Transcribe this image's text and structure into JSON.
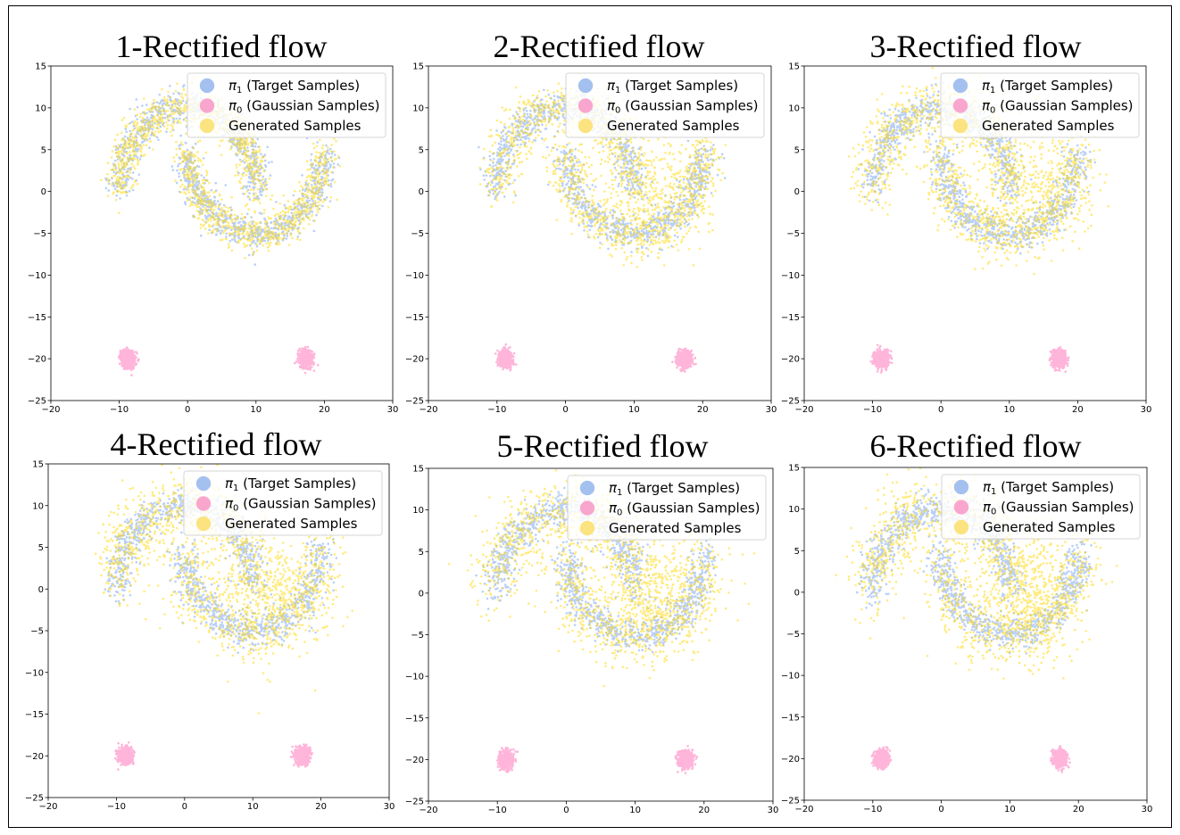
{
  "colors": {
    "target": "#6495ed",
    "gaussian": "#ff69b4",
    "generated": "#ffd700",
    "legend_target": "#a4c0ef",
    "legend_gaussian": "#f9a6cf",
    "legend_generated": "#fbe37f"
  },
  "legend": {
    "target_symbol": "π",
    "target_sub": "1",
    "target_text": " (Target Samples)",
    "gaussian_symbol": "π",
    "gaussian_sub": "0",
    "gaussian_text": " (Gaussian Samples)",
    "generated_text": "Generated Samples"
  },
  "chart_data": [
    {
      "type": "scatter",
      "title": "1-Rectified flow",
      "xlim": [
        -20,
        30
      ],
      "ylim": [
        -25,
        15
      ],
      "xticks": [
        "−20",
        "−10",
        "0",
        "10",
        "20",
        "30"
      ],
      "yticks": [
        "15",
        "10",
        "5",
        "0",
        "−5",
        "−10",
        "−15",
        "−20",
        "−25"
      ],
      "xtick_values": [
        -20,
        -10,
        0,
        10,
        20,
        30
      ],
      "ytick_values": [
        15,
        10,
        5,
        0,
        -5,
        -10,
        -15,
        -20,
        -25
      ],
      "legend_loc": "upper right",
      "series": [
        {
          "name": "π1 (Target Samples)",
          "distribution": "two interleaving moons",
          "moon_1_center": [
            0,
            0
          ],
          "moon_2_center": [
            10,
            5
          ],
          "radius": 10
        },
        {
          "name": "π0 (Gaussian Samples)",
          "clusters": [
            {
              "center": [
                -8.7,
                -20
              ],
              "std": 0.5
            },
            {
              "center": [
                17.3,
                -20
              ],
              "std": 0.5
            }
          ]
        },
        {
          "name": "Generated Samples",
          "spread": 1.1
        }
      ]
    },
    {
      "type": "scatter",
      "title": "2-Rectified flow",
      "xlim": [
        -20,
        30
      ],
      "ylim": [
        -25,
        15
      ],
      "xticks": [
        "−20",
        "−10",
        "0",
        "10",
        "20",
        "30"
      ],
      "yticks": [
        "15",
        "10",
        "5",
        "0",
        "−5",
        "−10",
        "−15",
        "−20",
        "−25"
      ],
      "xtick_values": [
        -20,
        -10,
        0,
        10,
        20,
        30
      ],
      "ytick_values": [
        15,
        10,
        5,
        0,
        -5,
        -10,
        -15,
        -20,
        -25
      ],
      "legend_loc": "upper right",
      "series": [
        {
          "name": "π1 (Target Samples)",
          "distribution": "two interleaving moons",
          "moon_1_center": [
            0,
            0
          ],
          "moon_2_center": [
            10,
            5
          ],
          "radius": 10
        },
        {
          "name": "π0 (Gaussian Samples)",
          "clusters": [
            {
              "center": [
                -8.7,
                -20
              ],
              "std": 0.5
            },
            {
              "center": [
                17.3,
                -20
              ],
              "std": 0.5
            }
          ]
        },
        {
          "name": "Generated Samples",
          "spread": 1.6
        }
      ]
    },
    {
      "type": "scatter",
      "title": "3-Rectified flow",
      "xlim": [
        -20,
        30
      ],
      "ylim": [
        -25,
        15
      ],
      "xticks": [
        "−20",
        "−10",
        "0",
        "10",
        "20",
        "30"
      ],
      "yticks": [
        "15",
        "10",
        "5",
        "0",
        "−5",
        "−10",
        "−15",
        "−20",
        "−25"
      ],
      "xtick_values": [
        -20,
        -10,
        0,
        10,
        20,
        30
      ],
      "ytick_values": [
        15,
        10,
        5,
        0,
        -5,
        -10,
        -15,
        -20,
        -25
      ],
      "legend_loc": "upper right",
      "series": [
        {
          "name": "π1 (Target Samples)",
          "distribution": "two interleaving moons",
          "moon_1_center": [
            0,
            0
          ],
          "moon_2_center": [
            10,
            5
          ],
          "radius": 10
        },
        {
          "name": "π0 (Gaussian Samples)",
          "clusters": [
            {
              "center": [
                -8.7,
                -20
              ],
              "std": 0.5
            },
            {
              "center": [
                17.3,
                -20
              ],
              "std": 0.5
            }
          ]
        },
        {
          "name": "Generated Samples",
          "spread": 1.8
        }
      ]
    },
    {
      "type": "scatter",
      "title": "4-Rectified flow",
      "xlim": [
        -20,
        30
      ],
      "ylim": [
        -25,
        15
      ],
      "xticks": [
        "−20",
        "−10",
        "0",
        "10",
        "20",
        "30"
      ],
      "yticks": [
        "15",
        "10",
        "5",
        "0",
        "−5",
        "−10",
        "−15",
        "−20",
        "−25"
      ],
      "xtick_values": [
        -20,
        -10,
        0,
        10,
        20,
        30
      ],
      "ytick_values": [
        15,
        10,
        5,
        0,
        -5,
        -10,
        -15,
        -20,
        -25
      ],
      "legend_loc": "upper right",
      "series": [
        {
          "name": "π1 (Target Samples)",
          "distribution": "two interleaving moons",
          "moon_1_center": [
            0,
            0
          ],
          "moon_2_center": [
            10,
            5
          ],
          "radius": 10
        },
        {
          "name": "π0 (Gaussian Samples)",
          "clusters": [
            {
              "center": [
                -8.7,
                -20
              ],
              "std": 0.5
            },
            {
              "center": [
                17.3,
                -20
              ],
              "std": 0.5
            }
          ]
        },
        {
          "name": "Generated Samples",
          "spread": 2.0
        }
      ]
    },
    {
      "type": "scatter",
      "title": "5-Rectified flow",
      "xlim": [
        -20,
        30
      ],
      "ylim": [
        -25,
        15
      ],
      "xticks": [
        "−20",
        "−10",
        "0",
        "10",
        "20",
        "30"
      ],
      "yticks": [
        "15",
        "10",
        "5",
        "0",
        "−5",
        "−10",
        "−15",
        "−20",
        "−25"
      ],
      "xtick_values": [
        -20,
        -10,
        0,
        10,
        20,
        30
      ],
      "ytick_values": [
        15,
        10,
        5,
        0,
        -5,
        -10,
        -15,
        -20,
        -25
      ],
      "legend_loc": "upper right",
      "series": [
        {
          "name": "π1 (Target Samples)",
          "distribution": "two interleaving moons",
          "moon_1_center": [
            0,
            0
          ],
          "moon_2_center": [
            10,
            5
          ],
          "radius": 10
        },
        {
          "name": "π0 (Gaussian Samples)",
          "clusters": [
            {
              "center": [
                -8.7,
                -20
              ],
              "std": 0.5
            },
            {
              "center": [
                17.3,
                -20
              ],
              "std": 0.5
            }
          ]
        },
        {
          "name": "Generated Samples",
          "spread": 2.1
        }
      ]
    },
    {
      "type": "scatter",
      "title": "6-Rectified flow",
      "xlim": [
        -20,
        30
      ],
      "ylim": [
        -25,
        15
      ],
      "xticks": [
        "−20",
        "−10",
        "0",
        "10",
        "20",
        "30"
      ],
      "yticks": [
        "15",
        "10",
        "5",
        "0",
        "−5",
        "−10",
        "−15",
        "−20",
        "−25"
      ],
      "xtick_values": [
        -20,
        -10,
        0,
        10,
        20,
        30
      ],
      "ytick_values": [
        15,
        10,
        5,
        0,
        -5,
        -10,
        -15,
        -20,
        -25
      ],
      "legend_loc": "upper right",
      "series": [
        {
          "name": "π1 (Target Samples)",
          "distribution": "two interleaving moons",
          "moon_1_center": [
            0,
            0
          ],
          "moon_2_center": [
            10,
            5
          ],
          "radius": 10
        },
        {
          "name": "π0 (Gaussian Samples)",
          "clusters": [
            {
              "center": [
                -8.7,
                -20
              ],
              "std": 0.5
            },
            {
              "center": [
                17.3,
                -20
              ],
              "std": 0.5
            }
          ]
        },
        {
          "name": "Generated Samples",
          "spread": 2.2
        }
      ]
    }
  ]
}
